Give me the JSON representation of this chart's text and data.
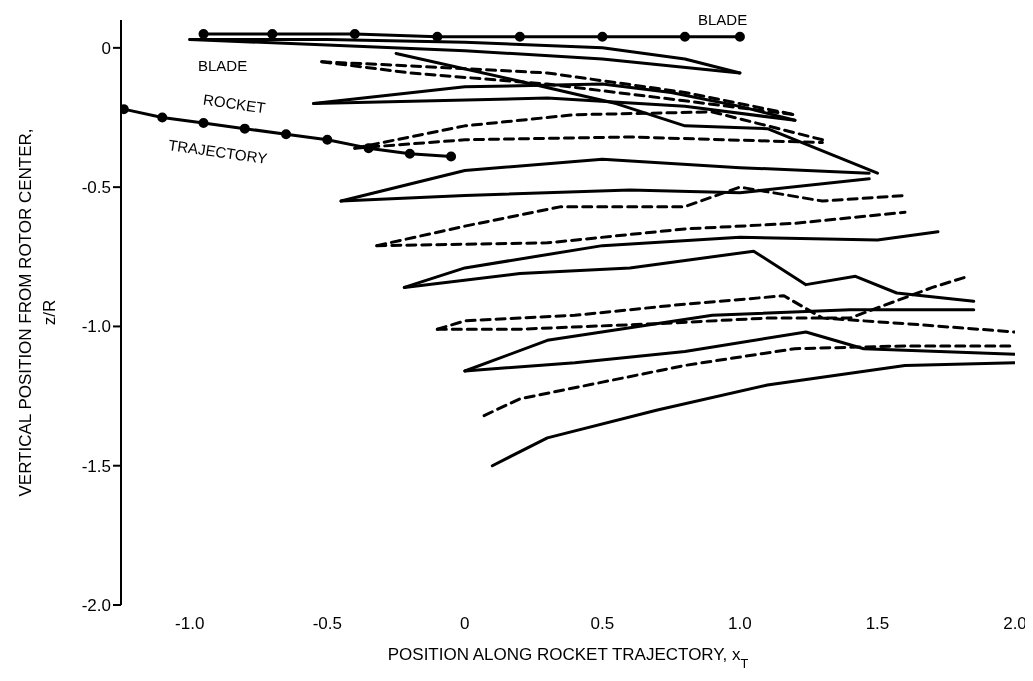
{
  "chart_data": {
    "type": "line",
    "xlabel": "POSITION ALONG ROCKET TRAJECTORY, x$_{T}$",
    "ylabel": "VERTICAL POSITION FROM ROTOR CENTER, z/R",
    "xlim": [
      -1.25,
      2.0
    ],
    "ylim": [
      -2.0,
      0.1
    ],
    "xticks": [
      {
        "value": -1,
        "label": "-1.0"
      },
      -0.5,
      0,
      0.5,
      {
        "value": 1,
        "label": "1.0"
      },
      1.5,
      {
        "value": 2,
        "label": "2.0"
      }
    ],
    "yticks": [
      0,
      -0.5,
      {
        "value": -1,
        "label": "-1.0"
      },
      -1.5,
      {
        "value": -2,
        "label": "-2.0"
      }
    ],
    "annotations": [
      "BLADE",
      "BLADE",
      "ROCKET TRAJECTORY"
    ],
    "series": [
      {
        "color": "#000000",
        "line_style": "solid",
        "marker": "circle",
        "x": [
          -1.24,
          -1.1,
          -0.95,
          -0.8,
          -0.65,
          -0.5,
          -0.35,
          -0.2,
          -0.05
        ],
        "values": [
          -0.22,
          -0.25,
          -0.27,
          -0.29,
          -0.31,
          -0.33,
          -0.36,
          -0.38,
          -0.39
        ]
      },
      {
        "color": "#000000",
        "line_style": "solid",
        "marker": "circle",
        "x": [
          -0.95,
          -0.7,
          -0.4,
          -0.1,
          0.2,
          0.5,
          0.8,
          1.0
        ],
        "values": [
          0.05,
          0.05,
          0.05,
          0.04,
          0.04,
          0.04,
          0.04,
          0.04
        ]
      },
      {
        "color": "#000000",
        "line_style": "solid",
        "x": [
          -1.0,
          -0.5,
          0.0,
          0.5,
          0.8,
          1.0
        ],
        "values": [
          0.03,
          0.03,
          0.02,
          0.0,
          -0.04,
          -0.09
        ]
      },
      {
        "color": "#000000",
        "line_style": "solid",
        "x": [
          -1.0,
          -0.5,
          0.0,
          0.5,
          1.0
        ],
        "values": [
          0.03,
          0.01,
          -0.01,
          -0.04,
          -0.09
        ]
      },
      {
        "color": "#000000",
        "line_style": "dashed",
        "x": [
          -0.52,
          -0.3,
          0.3,
          0.8,
          1.2
        ],
        "values": [
          -0.05,
          -0.06,
          -0.09,
          -0.16,
          -0.24
        ]
      },
      {
        "color": "#000000",
        "line_style": "dashed",
        "x": [
          -0.52,
          -0.2,
          0.3,
          0.8,
          1.2
        ],
        "values": [
          -0.05,
          -0.09,
          -0.13,
          -0.19,
          -0.24
        ]
      },
      {
        "color": "#000000",
        "line_style": "solid",
        "x": [
          -0.55,
          0.0,
          0.5,
          0.75,
          1.0,
          1.2
        ],
        "values": [
          -0.2,
          -0.14,
          -0.13,
          -0.16,
          -0.21,
          -0.26
        ]
      },
      {
        "color": "#000000",
        "line_style": "solid",
        "x": [
          -0.55,
          0.3,
          0.8,
          1.2
        ],
        "values": [
          -0.2,
          -0.18,
          -0.21,
          -0.26
        ]
      },
      {
        "color": "#000000",
        "line_style": "solid",
        "x": [
          -0.25,
          0.2,
          0.55,
          0.8,
          1.1,
          1.5
        ],
        "values": [
          -0.02,
          -0.12,
          -0.2,
          -0.28,
          -0.29,
          -0.45
        ]
      },
      {
        "color": "#000000",
        "line_style": "dashed",
        "x": [
          -0.4,
          0.0,
          0.4,
          0.9,
          1.3
        ],
        "values": [
          -0.36,
          -0.28,
          -0.24,
          -0.23,
          -0.33
        ]
      },
      {
        "color": "#000000",
        "line_style": "dashed",
        "x": [
          -0.4,
          0.0,
          0.6,
          1.3
        ],
        "values": [
          -0.36,
          -0.33,
          -0.32,
          -0.34
        ]
      },
      {
        "color": "#000000",
        "line_style": "solid",
        "x": [
          -0.45,
          0.0,
          0.5,
          1.0,
          1.47
        ],
        "values": [
          -0.55,
          -0.44,
          -0.4,
          -0.43,
          -0.45
        ]
      },
      {
        "color": "#000000",
        "line_style": "solid",
        "x": [
          -0.45,
          0.0,
          0.6,
          1.0,
          1.47
        ],
        "values": [
          -0.55,
          -0.53,
          -0.51,
          -0.52,
          -0.47
        ]
      },
      {
        "color": "#000000",
        "line_style": "dashed",
        "x": [
          -0.32,
          0.0,
          0.35,
          0.8,
          1.0,
          1.3,
          1.6
        ],
        "values": [
          -0.71,
          -0.64,
          -0.57,
          -0.57,
          -0.5,
          -0.55,
          -0.53
        ]
      },
      {
        "color": "#000000",
        "line_style": "dashed",
        "x": [
          -0.32,
          0.3,
          0.8,
          1.2,
          1.5,
          1.6
        ],
        "values": [
          -0.71,
          -0.7,
          -0.65,
          -0.63,
          -0.6,
          -0.59
        ]
      },
      {
        "color": "#000000",
        "line_style": "solid",
        "x": [
          -0.22,
          0.0,
          0.5,
          1.0,
          1.5,
          1.72
        ],
        "values": [
          -0.86,
          -0.79,
          -0.71,
          -0.68,
          -0.69,
          -0.66
        ]
      },
      {
        "color": "#000000",
        "line_style": "solid",
        "x": [
          -0.22,
          0.2,
          0.6,
          1.05,
          1.24,
          1.42,
          1.57,
          1.85
        ],
        "values": [
          -0.86,
          -0.81,
          -0.79,
          -0.73,
          -0.85,
          -0.82,
          -0.88,
          -0.91
        ]
      },
      {
        "color": "#000000",
        "line_style": "dashed",
        "x": [
          -0.1,
          0.0,
          0.4,
          0.8,
          1.16,
          1.3,
          1.6,
          2.0
        ],
        "values": [
          -1.01,
          -0.98,
          -0.96,
          -0.92,
          -0.89,
          -0.97,
          -0.99,
          -1.02
        ]
      },
      {
        "color": "#000000",
        "line_style": "dashed",
        "x": [
          -0.1,
          0.2,
          0.7,
          1.1,
          1.4,
          1.7,
          1.83
        ],
        "values": [
          -1.01,
          -1.01,
          -0.99,
          -0.97,
          -0.97,
          -0.86,
          -0.82
        ]
      },
      {
        "color": "#000000",
        "line_style": "solid",
        "x": [
          0.0,
          0.3,
          0.9,
          1.4,
          1.85
        ],
        "values": [
          -1.16,
          -1.05,
          -0.96,
          -0.94,
          -0.94
        ]
      },
      {
        "color": "#000000",
        "line_style": "solid",
        "x": [
          0.0,
          0.4,
          0.8,
          1.24,
          1.45,
          2.0
        ],
        "values": [
          -1.16,
          -1.13,
          -1.09,
          -1.02,
          -1.08,
          -1.1
        ]
      },
      {
        "color": "#000000",
        "line_style": "dashed",
        "x": [
          0.07,
          0.2,
          0.5,
          0.8,
          1.2,
          1.6,
          2.0
        ],
        "values": [
          -1.32,
          -1.26,
          -1.2,
          -1.14,
          -1.08,
          -1.07,
          -1.07
        ]
      },
      {
        "color": "#000000",
        "line_style": "solid",
        "x": [
          0.1,
          0.3,
          0.7,
          1.1,
          1.6,
          2.0
        ],
        "values": [
          -1.5,
          -1.4,
          -1.3,
          -1.21,
          -1.14,
          -1.13
        ]
      }
    ]
  }
}
